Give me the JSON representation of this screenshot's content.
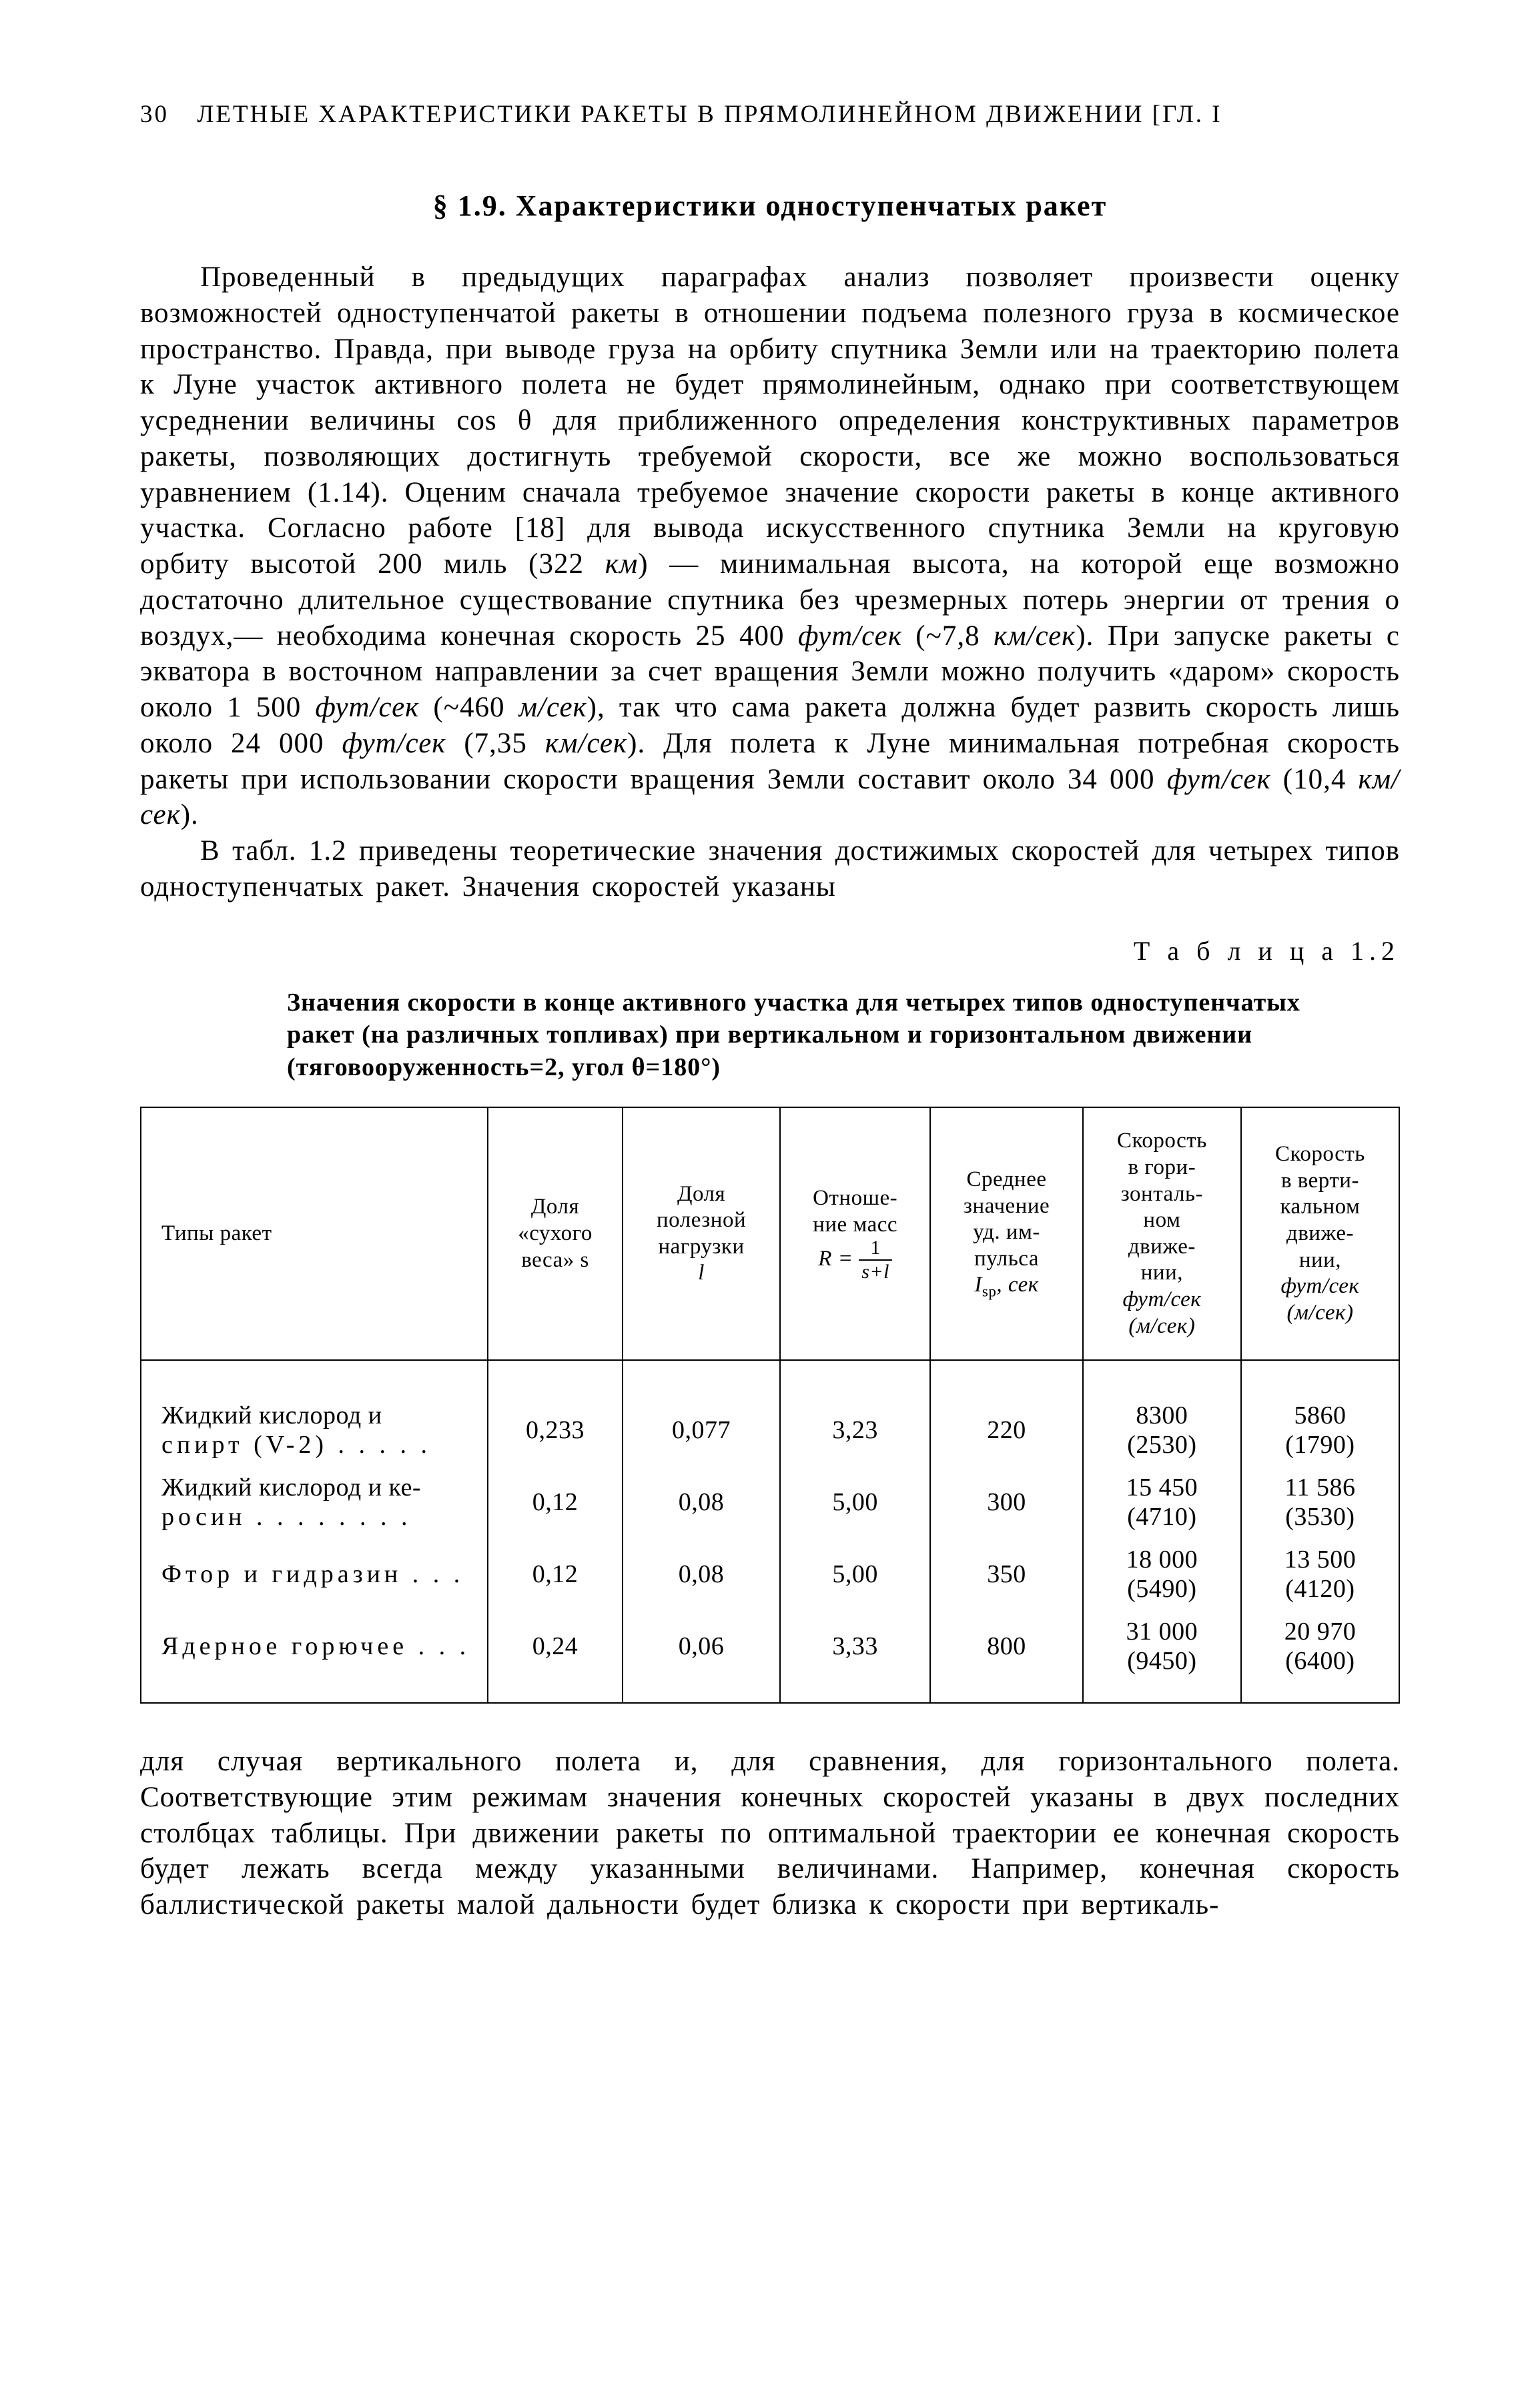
{
  "page_number": "30",
  "running_header": "ЛЕТНЫЕ ХАРАКТЕРИСТИКИ РАКЕТЫ В ПРЯМОЛИНЕЙНОМ ДВИЖЕНИИ [ГЛ. I",
  "section_title": "§ 1.9. Характеристики одноступенчатых ракет",
  "para1": "Проведенный в предыдущих параграфах анализ позволяет произвести оценку возможностей одноступенчатой ракеты в отношении подъема полезного груза в космическое пространство. Правда, при выводе груза на орбиту спутника Земли или на траекторию полета к Луне участок активного полета не будет прямолинейным, однако при соответствующем усреднении величины cos θ для приближенного определения конструктивных параметров ракеты, позволяющих достигнуть требуемой скорости, все же можно воспользоваться уравнением (1.14). Оценим сначала требуемое значение скорости ракеты в конце активного участка. Согласно работе [18] для вывода искусственного спутника Земли на круговую орбиту высотой 200 миль (322 ",
  "para1_km": "км",
  "para1b": ") — минимальная высота, на которой еще возможно достаточно длительное существование спутника без чрезмерных потерь энергии от трения о воздух,— необходима конечная скорость 25 400 ",
  "unit_fps": "фут/сек",
  "para1c": " (~7,8 ",
  "unit_kms": "км/сек",
  "para1d": "). При запуске ракеты с экватора в восточном направлении за счет вращения Земли можно получить «даром» скорость около 1 500 ",
  "para1e": " (~460 ",
  "unit_ms": "м/сек",
  "para1f": "), так что сама ракета должна будет развить скорость лишь около 24 000 ",
  "para1g": " (7,35 ",
  "para1h": "). Для полета к Луне минимальная потребная скорость ракеты при использовании скорости вращения Земли составит около 34 000 ",
  "para1i": " (10,4 ",
  "para1j": ").",
  "para2": "В табл. 1.2 приведены теоретические значения достижимых скоростей для четырех типов одноступенчатых ракет. Значения скоростей указаны",
  "table_label": "Т а б л и ц а  1.2",
  "table_caption": "Значения скорости в конце активного участка для четырех типов одноступенчатых ракет (на различных топливах) при вертикальном и горизонтальном движении (тяговооруженность=2, угол θ=180°)",
  "table": {
    "headers": {
      "c1": "Типы ракет",
      "c2_l1": "Доля",
      "c2_l2": "«сухого",
      "c2_l3": "веса» s",
      "c3_l1": "Доля",
      "c3_l2": "полезной",
      "c3_l3": "нагрузки",
      "c3_l4": "l",
      "c4_l1": "Отноше-",
      "c4_l2": "ние масс",
      "c4_frac_num": "1",
      "c4_frac_den": "s+l",
      "c4_R": "R =",
      "c5_l1": "Среднее",
      "c5_l2": "значение",
      "c5_l3": "уд. им-",
      "c5_l4": "пульса",
      "c5_l5a": "I",
      "c5_l5b": "sp",
      "c5_l5c": ", сек",
      "c6_l1": "Скорость",
      "c6_l2": "в гори-",
      "c6_l3": "зонталь-",
      "c6_l4": "ном",
      "c6_l5": "движе-",
      "c6_l6": "нии,",
      "c6_l7": "фут/сек",
      "c6_l8": "(м/сек)",
      "c7_l1": "Скорость",
      "c7_l2": "в верти-",
      "c7_l3": "кальном",
      "c7_l4": "движе-",
      "c7_l5": "нии,",
      "c7_l6": "фут/сек",
      "c7_l7": "(м/сек)"
    },
    "rows": [
      {
        "name_l1": "Жидкий кислород и",
        "name_l2": "спирт (V-2)  .  .  .  .  .",
        "s": "0,233",
        "l": "0,077",
        "R": "3,23",
        "Isp": "220",
        "vh": "8300",
        "vh2": "(2530)",
        "vv": "5860",
        "vv2": "(1790)"
      },
      {
        "name_l1": "Жидкий кислород и ке-",
        "name_l2": "росин  .  .  .  .  .  .  .  .",
        "s": "0,12",
        "l": "0,08",
        "R": "5,00",
        "Isp": "300",
        "vh": "15 450",
        "vh2": "(4710)",
        "vv": "11 586",
        "vv2": "(3530)"
      },
      {
        "name_l1": "Фтор и гидразин  .  .  .",
        "name_l2": "",
        "s": "0,12",
        "l": "0,08",
        "R": "5,00",
        "Isp": "350",
        "vh": "18 000",
        "vh2": "(5490)",
        "vv": "13 500",
        "vv2": "(4120)"
      },
      {
        "name_l1": "Ядерное горючее  .  .  .",
        "name_l2": "",
        "s": "0,24",
        "l": "0,06",
        "R": "3,33",
        "Isp": "800",
        "vh": "31 000",
        "vh2": "(9450)",
        "vv": "20 970",
        "vv2": "(6400)"
      }
    ]
  },
  "para3": "для случая вертикального полета и, для сравнения, для горизонтального полета. Соответствующие этим режимам значения конечных скоростей указаны в двух последних столбцах таблицы. При движении ракеты по оптимальной траектории ее конечная скорость будет лежать всегда между указанными величинами. Например, конечная скорость баллистической ракеты малой дальности будет близка к скорости при вертикаль-"
}
